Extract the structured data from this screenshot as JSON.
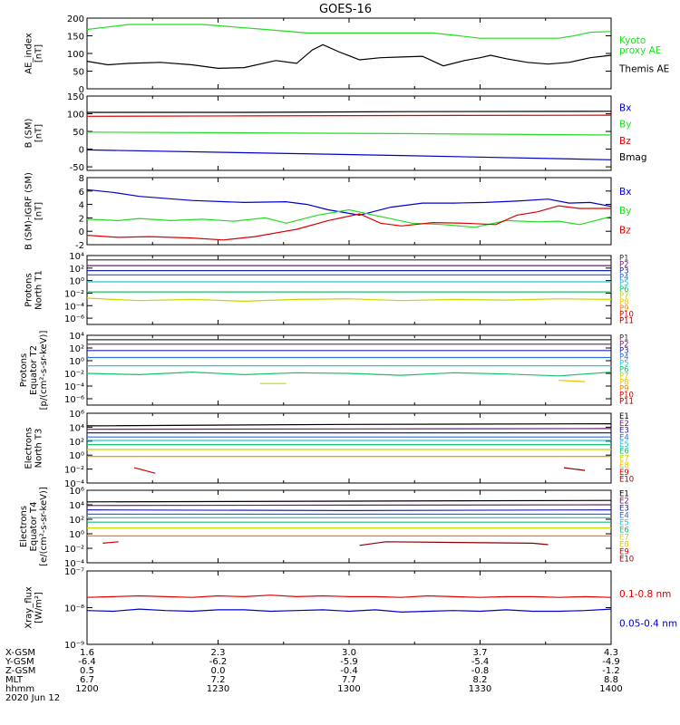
{
  "title": "GOES-16",
  "colors": {
    "black": "#000000",
    "green": "#22dd22",
    "red": "#dd0000",
    "blue": "#0000cc",
    "p1": "#333333",
    "p2": "#6b1f6b",
    "p3": "#2020aa",
    "p4": "#2f6fd6",
    "p5": "#22c8d8",
    "p6": "#18c070",
    "p7": "#c8d800",
    "p8": "#f0c000",
    "p9": "#f08000",
    "p10": "#d00000",
    "p11": "#880000"
  },
  "chart_data": [
    {
      "type": "line",
      "ylabel": "AE_index\n[nT]",
      "ylim": [
        0,
        200
      ],
      "yticks": [
        "200",
        "150",
        "100",
        "50",
        "0"
      ],
      "yticks_values": [
        200,
        150,
        100,
        50,
        0
      ],
      "log": false,
      "series": [
        {
          "name": "Kyoto\nproxy AE",
          "color": "green",
          "x": [
            0,
            0.04,
            0.08,
            0.22,
            0.34,
            0.42,
            0.66,
            0.71,
            0.75,
            0.82,
            0.9,
            0.93,
            0.96,
            1.0
          ],
          "y": [
            168,
            175,
            182,
            182,
            168,
            158,
            158,
            150,
            143,
            143,
            143,
            150,
            160,
            162
          ]
        },
        {
          "name": "Themis AE",
          "color": "black",
          "x": [
            0,
            0.04,
            0.08,
            0.14,
            0.2,
            0.25,
            0.3,
            0.36,
            0.4,
            0.43,
            0.45,
            0.48,
            0.52,
            0.56,
            0.6,
            0.64,
            0.68,
            0.72,
            0.75,
            0.77,
            0.8,
            0.84,
            0.88,
            0.92,
            0.96,
            1.0
          ],
          "y": [
            78,
            68,
            72,
            75,
            68,
            58,
            60,
            80,
            72,
            110,
            125,
            105,
            82,
            88,
            90,
            92,
            65,
            80,
            88,
            95,
            85,
            75,
            70,
            75,
            88,
            95
          ]
        }
      ]
    },
    {
      "type": "line",
      "ylabel": "B (SM)\n[nT]",
      "ylim": [
        -60,
        150
      ],
      "yticks": [
        "150",
        "100",
        "50",
        "0",
        "-50"
      ],
      "yticks_values": [
        150,
        100,
        50,
        0,
        -50
      ],
      "log": false,
      "series": [
        {
          "name": "Bx",
          "color": "blue",
          "x": [
            0,
            0.3,
            0.6,
            1.0
          ],
          "y": [
            -2,
            -10,
            -18,
            -30
          ]
        },
        {
          "name": "By",
          "color": "green",
          "x": [
            0,
            0.3,
            0.6,
            1.0
          ],
          "y": [
            48,
            46,
            44,
            40
          ]
        },
        {
          "name": "Bz",
          "color": "red",
          "x": [
            0,
            0.3,
            0.6,
            1.0
          ],
          "y": [
            93,
            94,
            95,
            96
          ]
        },
        {
          "name": "Bmag",
          "color": "black",
          "x": [
            0,
            0.3,
            0.6,
            1.0
          ],
          "y": [
            104,
            104,
            106,
            107
          ]
        }
      ]
    },
    {
      "type": "line",
      "ylabel": "B (SM)-IGRF (SM)\n[nT]",
      "ylim": [
        -2,
        8
      ],
      "yticks": [
        "8",
        "6",
        "4",
        "2",
        "0",
        "-2"
      ],
      "yticks_values": [
        8,
        6,
        4,
        2,
        0,
        -2
      ],
      "log": false,
      "series": [
        {
          "name": "Bx",
          "color": "blue",
          "x": [
            0,
            0.05,
            0.1,
            0.2,
            0.3,
            0.38,
            0.42,
            0.46,
            0.52,
            0.58,
            0.64,
            0.7,
            0.76,
            0.82,
            0.88,
            0.92,
            0.96,
            1.0
          ],
          "y": [
            6.2,
            5.8,
            5.2,
            4.6,
            4.3,
            4.4,
            4.0,
            3.2,
            2.4,
            3.6,
            4.2,
            4.2,
            4.3,
            4.5,
            4.8,
            4.2,
            4.3,
            3.7
          ]
        },
        {
          "name": "By",
          "color": "green",
          "x": [
            0,
            0.06,
            0.1,
            0.16,
            0.22,
            0.28,
            0.34,
            0.38,
            0.44,
            0.5,
            0.56,
            0.62,
            0.68,
            0.74,
            0.8,
            0.86,
            0.9,
            0.94,
            0.98,
            1.0
          ],
          "y": [
            1.8,
            1.6,
            1.9,
            1.6,
            1.8,
            1.5,
            2.0,
            1.2,
            2.4,
            3.2,
            2.2,
            1.2,
            1.0,
            0.6,
            1.6,
            1.4,
            1.5,
            1.0,
            1.8,
            2.2
          ]
        },
        {
          "name": "Bz",
          "color": "red",
          "x": [
            0,
            0.06,
            0.12,
            0.2,
            0.26,
            0.32,
            0.4,
            0.46,
            0.52,
            0.56,
            0.6,
            0.66,
            0.72,
            0.78,
            0.82,
            0.86,
            0.9,
            0.94,
            1.0
          ],
          "y": [
            -0.6,
            -0.9,
            -0.8,
            -1.0,
            -1.3,
            -0.8,
            0.3,
            1.6,
            2.6,
            1.2,
            0.8,
            1.3,
            1.2,
            1.0,
            2.4,
            2.9,
            3.8,
            3.4,
            3.4
          ]
        }
      ]
    },
    {
      "type": "line",
      "ylabel": "Protons\nNorth T1",
      "ylim": [
        -7,
        4
      ],
      "yticks": [
        "10⁴",
        "10²",
        "10⁰",
        "10⁻²",
        "10⁻⁴",
        "10⁻⁶"
      ],
      "yticks_values": [
        4,
        2,
        0,
        -2,
        -4,
        -6
      ],
      "log": true,
      "series": [
        {
          "name": "P1",
          "color": "p1",
          "x": [
            0,
            1
          ],
          "y": [
            3.3,
            3.3
          ]
        },
        {
          "name": "P2",
          "color": "p2",
          "x": [
            0,
            1
          ],
          "y": [
            2.4,
            2.4
          ]
        },
        {
          "name": "P3",
          "color": "p3",
          "x": [
            0,
            1
          ],
          "y": [
            1.6,
            1.6
          ]
        },
        {
          "name": "P4",
          "color": "p4",
          "x": [
            0,
            1
          ],
          "y": [
            0.9,
            0.9
          ]
        },
        {
          "name": "P5",
          "color": "p5",
          "x": [
            0,
            1
          ],
          "y": [
            -0.2,
            -0.2
          ]
        },
        {
          "name": "P6",
          "color": "p6",
          "x": [
            0,
            1
          ],
          "y": [
            -1.8,
            -1.8
          ]
        },
        {
          "name": "P7",
          "color": "p7",
          "x": [
            0,
            0.1,
            0.2,
            0.3,
            0.4,
            0.5,
            0.6,
            0.7,
            0.8,
            0.9,
            1.0
          ],
          "y": [
            -2.8,
            -3.2,
            -3.0,
            -3.3,
            -3.0,
            -2.9,
            -3.2,
            -3.0,
            -3.1,
            -2.9,
            -3.0
          ]
        }
      ]
    },
    {
      "type": "line",
      "ylabel": "Protons\nEquator T2\n[p/(cm²-s-sr-keV)]",
      "ylim": [
        -7,
        4
      ],
      "yticks": [
        "10⁴",
        "10²",
        "10⁰",
        "10⁻²",
        "10⁻⁴",
        "10⁻⁶"
      ],
      "yticks_values": [
        4,
        2,
        0,
        -2,
        -4,
        -6
      ],
      "log": true,
      "series": [
        {
          "name": "P1",
          "color": "p1",
          "x": [
            0,
            1
          ],
          "y": [
            3.3,
            3.3
          ]
        },
        {
          "name": "P2",
          "color": "p2",
          "x": [
            0,
            1
          ],
          "y": [
            2.6,
            2.6
          ]
        },
        {
          "name": "P3",
          "color": "p3",
          "x": [
            0,
            1
          ],
          "y": [
            1.6,
            1.6
          ]
        },
        {
          "name": "P4",
          "color": "p4",
          "x": [
            0,
            1
          ],
          "y": [
            0.5,
            0.5
          ]
        },
        {
          "name": "P5",
          "color": "p5",
          "x": [
            0,
            1
          ],
          "y": [
            -0.8,
            -0.8
          ]
        },
        {
          "name": "P6",
          "color": "p6",
          "x": [
            0,
            0.1,
            0.2,
            0.3,
            0.4,
            0.5,
            0.6,
            0.7,
            0.8,
            0.9,
            1.0
          ],
          "y": [
            -2.0,
            -2.2,
            -1.8,
            -2.2,
            -1.9,
            -2.0,
            -2.3,
            -1.9,
            -2.1,
            -2.4,
            -1.8
          ]
        },
        {
          "name": "P7",
          "color": "p7",
          "x": [
            0.33,
            0.38
          ],
          "y": [
            -3.6,
            -3.6
          ]
        },
        {
          "name": "P8",
          "color": "p8",
          "x": [
            0.9,
            0.95
          ],
          "y": [
            -3.1,
            -3.3
          ]
        }
      ]
    },
    {
      "type": "line",
      "ylabel": "Electrons\nNorth T3",
      "ylim": [
        -4,
        6
      ],
      "yticks": [
        "10⁶",
        "10⁴",
        "10²",
        "10⁰",
        "10⁻²",
        "10⁻⁴"
      ],
      "yticks_values": [
        6,
        4,
        2,
        0,
        -2,
        -4
      ],
      "log": true,
      "series": [
        {
          "name": "E1",
          "color": "black",
          "x": [
            0,
            0.5,
            1
          ],
          "y": [
            4.2,
            4.4,
            4.5
          ]
        },
        {
          "name": "E2",
          "color": "p2",
          "x": [
            0,
            1
          ],
          "y": [
            3.7,
            3.8
          ]
        },
        {
          "name": "E3",
          "color": "p3",
          "x": [
            0,
            1
          ],
          "y": [
            3.2,
            3.2
          ]
        },
        {
          "name": "E4",
          "color": "p4",
          "x": [
            0,
            1
          ],
          "y": [
            2.6,
            2.6
          ]
        },
        {
          "name": "E5",
          "color": "p5",
          "x": [
            0,
            1
          ],
          "y": [
            2.1,
            2.1
          ]
        },
        {
          "name": "E6",
          "color": "p6",
          "x": [
            0,
            1
          ],
          "y": [
            1.5,
            1.5
          ]
        },
        {
          "name": "E7",
          "color": "p7",
          "x": [
            0,
            1
          ],
          "y": [
            0.8,
            0.8
          ]
        },
        {
          "name": "E8",
          "color": "p9",
          "x": [
            0,
            1
          ],
          "y": [
            -0.2,
            -0.2
          ]
        },
        {
          "name": "E9",
          "color": "p10",
          "x": [
            0.09,
            0.13
          ],
          "y": [
            -1.8,
            -2.6
          ]
        },
        {
          "name": "E10",
          "color": "p11",
          "x": [
            0.91,
            0.95
          ],
          "y": [
            -1.8,
            -2.2
          ]
        }
      ]
    },
    {
      "type": "line",
      "ylabel": "Electrons\nEquator T4\n[e/(cm²-s-sr-keV)]",
      "ylim": [
        -4,
        6
      ],
      "yticks": [
        "10⁶",
        "10⁴",
        "10²",
        "10⁰",
        "10⁻²",
        "10⁻⁴"
      ],
      "yticks_values": [
        6,
        4,
        2,
        0,
        -2,
        -4
      ],
      "log": true,
      "series": [
        {
          "name": "E1",
          "color": "black",
          "x": [
            0,
            0.5,
            1
          ],
          "y": [
            4.4,
            4.5,
            4.6
          ]
        },
        {
          "name": "E2",
          "color": "p2",
          "x": [
            0,
            1
          ],
          "y": [
            3.9,
            4.0
          ]
        },
        {
          "name": "E3",
          "color": "p3",
          "x": [
            0,
            0.5,
            1
          ],
          "y": [
            3.3,
            3.2,
            3.3
          ]
        },
        {
          "name": "E4",
          "color": "p4",
          "x": [
            0,
            1
          ],
          "y": [
            2.7,
            2.7
          ]
        },
        {
          "name": "E5",
          "color": "p5",
          "x": [
            0,
            1
          ],
          "y": [
            2.2,
            2.2
          ]
        },
        {
          "name": "E6",
          "color": "p6",
          "x": [
            0,
            1
          ],
          "y": [
            1.6,
            1.6
          ]
        },
        {
          "name": "E7",
          "color": "p7",
          "x": [
            0,
            1
          ],
          "y": [
            0.8,
            0.8
          ]
        },
        {
          "name": "E8",
          "color": "p9",
          "x": [
            0,
            1
          ],
          "y": [
            -0.3,
            -0.3
          ]
        },
        {
          "name": "E9",
          "color": "p10",
          "x": [
            0.03,
            0.06
          ],
          "y": [
            -1.3,
            -1.1
          ]
        },
        {
          "name": "E10",
          "color": "p11",
          "x": [
            0.52,
            0.57,
            0.85,
            0.88
          ],
          "y": [
            -1.6,
            -1.1,
            -1.3,
            -1.5
          ]
        }
      ]
    },
    {
      "type": "line",
      "ylabel": "Xray_flux\n[W/m²]",
      "ylim": [
        -9,
        -7
      ],
      "yticks": [
        "10⁻⁷",
        "10⁻⁸",
        "10⁻⁹"
      ],
      "yticks_values": [
        -7,
        -8,
        -9
      ],
      "log": true,
      "series": [
        {
          "name": "0.1-0.8 nm",
          "color": "red",
          "x": [
            0,
            0.05,
            0.1,
            0.15,
            0.2,
            0.25,
            0.3,
            0.35,
            0.4,
            0.45,
            0.5,
            0.55,
            0.6,
            0.65,
            0.7,
            0.75,
            0.8,
            0.85,
            0.9,
            0.95,
            1.0
          ],
          "y": [
            -7.72,
            -7.7,
            -7.68,
            -7.7,
            -7.72,
            -7.68,
            -7.7,
            -7.66,
            -7.7,
            -7.68,
            -7.7,
            -7.7,
            -7.72,
            -7.68,
            -7.7,
            -7.72,
            -7.7,
            -7.7,
            -7.72,
            -7.7,
            -7.72
          ]
        },
        {
          "name": "0.05-0.4 nm",
          "color": "blue",
          "x": [
            0,
            0.05,
            0.1,
            0.15,
            0.2,
            0.25,
            0.3,
            0.35,
            0.4,
            0.45,
            0.5,
            0.55,
            0.6,
            0.65,
            0.7,
            0.75,
            0.8,
            0.85,
            0.9,
            0.95,
            1.0
          ],
          "y": [
            -8.08,
            -8.1,
            -8.04,
            -8.08,
            -8.1,
            -8.06,
            -8.06,
            -8.1,
            -8.08,
            -8.06,
            -8.1,
            -8.06,
            -8.12,
            -8.1,
            -8.08,
            -8.1,
            -8.06,
            -8.1,
            -8.1,
            -8.08,
            -8.04
          ]
        }
      ]
    }
  ],
  "series_labels": [
    [
      "Kyoto\nproxy AE",
      "Themis AE"
    ],
    [
      "Bx",
      "By",
      "Bz",
      "Bmag"
    ],
    [
      "Bx",
      "By",
      "Bz"
    ],
    [
      "P1",
      "P2",
      "P3",
      "P4",
      "P5",
      "P6",
      "P7",
      "P8",
      "P9",
      "P10",
      "P11"
    ],
    [
      "P1",
      "P2",
      "P3",
      "P4",
      "P5",
      "P6",
      "P7",
      "P8",
      "P9",
      "P10",
      "P11"
    ],
    [
      "E1",
      "E2",
      "E3",
      "E4",
      "E5",
      "E6",
      "E7",
      "E8",
      "E9",
      "E10"
    ],
    [
      "E1",
      "E2",
      "E3",
      "E4",
      "E5",
      "E6",
      "E7",
      "E8",
      "E9",
      "E10"
    ],
    [
      "0.1-0.8 nm",
      "0.05-0.4 nm"
    ]
  ],
  "series_label_colors": [
    [
      "green",
      "black"
    ],
    [
      "blue",
      "green",
      "red",
      "black"
    ],
    [
      "blue",
      "green",
      "red"
    ],
    [
      "p1",
      "p2",
      "p3",
      "p4",
      "p5",
      "p6",
      "p7",
      "p8",
      "p9",
      "p10",
      "p11"
    ],
    [
      "p1",
      "p2",
      "p3",
      "p4",
      "p5",
      "p6",
      "p7",
      "p8",
      "p9",
      "p10",
      "p11"
    ],
    [
      "black",
      "p2",
      "p3",
      "p4",
      "p5",
      "p6",
      "p7",
      "p8",
      "p10",
      "p11"
    ],
    [
      "black",
      "p2",
      "p3",
      "p4",
      "p5",
      "p6",
      "p7",
      "p8",
      "p10",
      "p11"
    ],
    [
      "red",
      "blue"
    ]
  ],
  "x_axis": {
    "row_labels": [
      "X-GSM",
      "Y-GSM",
      "Z-GSM",
      "MLT",
      "hhmm",
      "2020 Jun 12"
    ],
    "columns": [
      [
        "1.6",
        "-6.4",
        "0.5",
        "6.7",
        "1200"
      ],
      [
        "2.3",
        "-6.2",
        "0.0",
        "7.2",
        "1230"
      ],
      [
        "3.0",
        "-5.9",
        "-0.4",
        "7.7",
        "1300"
      ],
      [
        "3.7",
        "-5.4",
        "-0.8",
        "8.2",
        "1330"
      ],
      [
        "4.3",
        "-4.9",
        "-1.2",
        "8.8",
        "1400"
      ]
    ]
  }
}
